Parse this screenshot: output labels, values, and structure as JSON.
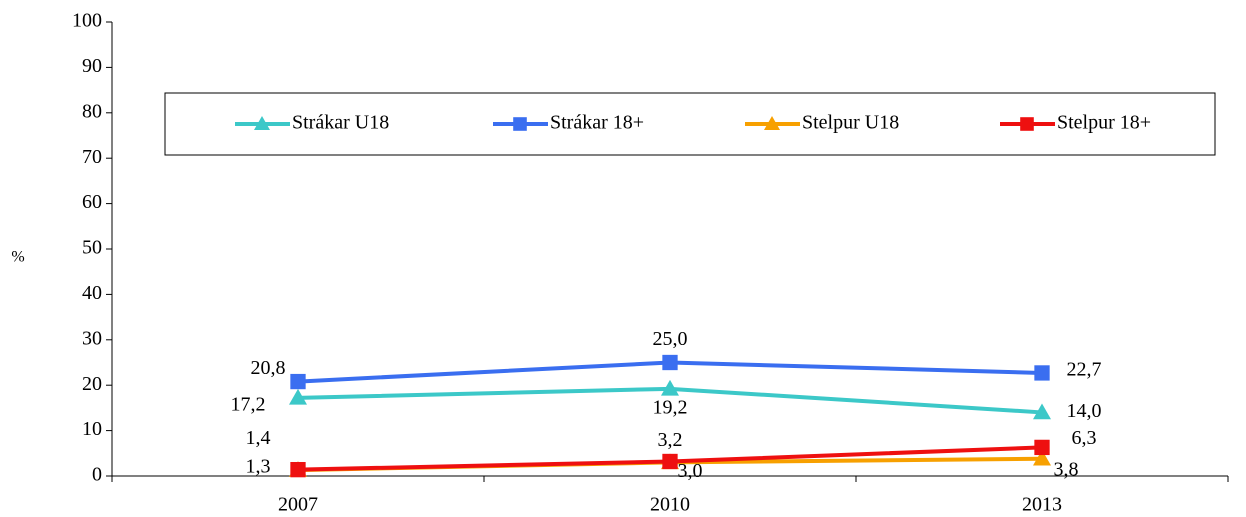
{
  "chart_data": {
    "type": "line",
    "y_label": "%",
    "categories": [
      "2007",
      "2010",
      "2013"
    ],
    "series": [
      {
        "name": "Strákar U18",
        "color": "#3cc8c8",
        "marker": "triangle",
        "values": [
          17.2,
          19.2,
          14.0
        ],
        "value_labels": [
          "17,2",
          "19,2",
          "14,0"
        ]
      },
      {
        "name": "Strákar 18+",
        "color": "#3a6ef0",
        "marker": "square",
        "values": [
          20.8,
          25.0,
          22.7
        ],
        "value_labels": [
          "20,8",
          "25,0",
          "22,7"
        ]
      },
      {
        "name": "Stelpur U18",
        "color": "#f7a000",
        "marker": "triangle",
        "values": [
          1.3,
          3.0,
          3.8
        ],
        "value_labels": [
          "1,3",
          "3,0",
          "3,8"
        ]
      },
      {
        "name": "Stelpur 18+",
        "color": "#ee1010",
        "marker": "square",
        "values": [
          1.4,
          3.2,
          6.3
        ],
        "value_labels": [
          "1,4",
          "3,2",
          "6,3"
        ]
      }
    ],
    "ylim": [
      0,
      100
    ],
    "yticks": [
      0,
      10,
      20,
      30,
      40,
      50,
      60,
      70,
      80,
      90,
      100
    ],
    "grid": false
  }
}
